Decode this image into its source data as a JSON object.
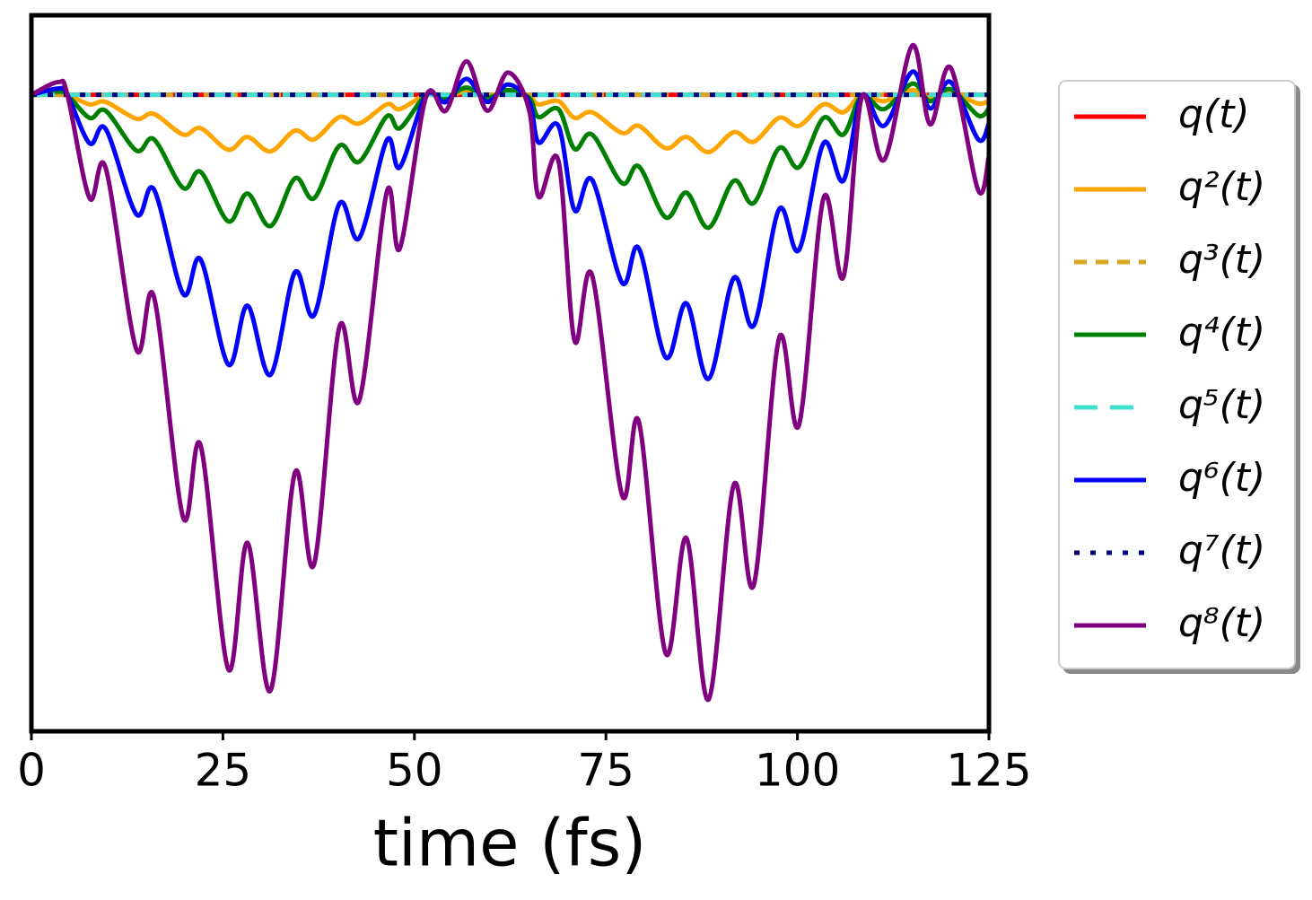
{
  "chart_data": {
    "type": "line",
    "xlabel": "time (fs)",
    "xlim": [
      0,
      125
    ],
    "xticks": [
      0,
      25,
      50,
      75,
      100,
      125
    ],
    "ylim": [
      -0.8,
      0.1
    ],
    "x": [
      0,
      3.5,
      4.7,
      7.6,
      9.7,
      13.7,
      16.0,
      19.8,
      22.1,
      25.7,
      28.2,
      31.2,
      34.4,
      36.9,
      40.2,
      42.8,
      46.4,
      48.1,
      51.5,
      54.1,
      56.8,
      59.5,
      62.2,
      65.0,
      66.2,
      68.8,
      70.9,
      73.2,
      77.1,
      79.3,
      82.8,
      85.5,
      88.4,
      91.7,
      94.3,
      97.6,
      100.2,
      103.4,
      106.0,
      108.4,
      111.3,
      115.0,
      117.3,
      120.0,
      123.6,
      125
    ],
    "legend": "right",
    "series": [
      {
        "name": "q(t)",
        "color": "#ff0000",
        "dash": "solid",
        "values": [
          0,
          0,
          0,
          0,
          0,
          0,
          0,
          0,
          0,
          0,
          0,
          0,
          0,
          0,
          0,
          0,
          0,
          0,
          0,
          0,
          0,
          0,
          0,
          0,
          0,
          0,
          0,
          0,
          0,
          0,
          0,
          0,
          0,
          0,
          0,
          0,
          0,
          0,
          0,
          0,
          0,
          0,
          0,
          0,
          0,
          0
        ]
      },
      {
        "name": "q²(t)",
        "color": "#ffa500",
        "dash": "solid",
        "values": [
          0,
          0.002,
          0,
          -0.012,
          -0.009,
          -0.03,
          -0.024,
          -0.05,
          -0.042,
          -0.069,
          -0.053,
          -0.071,
          -0.045,
          -0.056,
          -0.028,
          -0.036,
          -0.012,
          -0.018,
          0,
          -0.002,
          0.004,
          -0.002,
          0.003,
          -0.002,
          -0.012,
          -0.008,
          -0.029,
          -0.022,
          -0.048,
          -0.039,
          -0.067,
          -0.053,
          -0.072,
          -0.047,
          -0.059,
          -0.029,
          -0.039,
          -0.012,
          -0.022,
          0,
          -0.008,
          0.006,
          -0.004,
          0.003,
          -0.011,
          -0.007
        ]
      },
      {
        "name": "q³(t)",
        "color": "#daa520",
        "dash": "dashed",
        "values": [
          0,
          0,
          0,
          0,
          0,
          0,
          0,
          0,
          0,
          0,
          0,
          0,
          0,
          0,
          0,
          0,
          0,
          0,
          0,
          0,
          0,
          0,
          0,
          0,
          0,
          0,
          0,
          0,
          0,
          0,
          0,
          0,
          0,
          0,
          0,
          0,
          0,
          0,
          0,
          0,
          0,
          0,
          0,
          0,
          0,
          0
        ]
      },
      {
        "name": "q⁴(t)",
        "color": "#008000",
        "dash": "solid",
        "values": [
          0,
          0.004,
          0,
          -0.029,
          -0.02,
          -0.07,
          -0.056,
          -0.117,
          -0.097,
          -0.159,
          -0.124,
          -0.165,
          -0.105,
          -0.13,
          -0.064,
          -0.084,
          -0.027,
          -0.042,
          -0.001,
          -0.004,
          0.009,
          -0.004,
          0.006,
          -0.004,
          -0.028,
          -0.018,
          -0.068,
          -0.05,
          -0.111,
          -0.09,
          -0.154,
          -0.123,
          -0.167,
          -0.108,
          -0.136,
          -0.067,
          -0.091,
          -0.029,
          -0.05,
          -0.001,
          -0.018,
          0.014,
          -0.008,
          0.007,
          -0.026,
          -0.017
        ]
      },
      {
        "name": "q⁵(t)",
        "color": "#40e0d0",
        "dash": "longdash",
        "values": [
          0,
          0,
          0,
          0,
          0,
          0,
          0,
          0,
          0,
          0,
          0,
          0,
          0,
          0,
          0,
          0,
          0,
          0,
          0,
          0,
          0,
          0,
          0,
          0,
          0,
          0,
          0,
          0,
          0,
          0,
          0,
          0,
          0,
          0,
          0,
          0,
          0,
          0,
          0,
          0,
          0,
          0,
          0,
          0,
          0,
          0
        ]
      },
      {
        "name": "q⁶(t)",
        "color": "#0000ff",
        "dash": "solid",
        "values": [
          0,
          0.008,
          0,
          -0.061,
          -0.043,
          -0.15,
          -0.119,
          -0.25,
          -0.207,
          -0.339,
          -0.265,
          -0.352,
          -0.223,
          -0.277,
          -0.137,
          -0.18,
          -0.057,
          -0.091,
          -0.001,
          -0.009,
          0.02,
          -0.009,
          0.013,
          -0.009,
          -0.06,
          -0.039,
          -0.145,
          -0.107,
          -0.236,
          -0.193,
          -0.33,
          -0.262,
          -0.357,
          -0.23,
          -0.29,
          -0.144,
          -0.195,
          -0.061,
          -0.108,
          -0.001,
          -0.039,
          0.029,
          -0.017,
          0.016,
          -0.056,
          -0.036
        ]
      },
      {
        "name": "q⁷(t)",
        "color": "#000080",
        "dash": "dotted",
        "values": [
          0,
          0,
          0,
          0,
          0,
          0,
          0,
          0,
          0,
          0,
          0,
          0,
          0,
          0,
          0,
          0,
          0,
          0,
          0,
          0,
          0,
          0,
          0,
          0,
          0,
          0,
          0,
          0,
          0,
          0,
          0,
          0,
          0,
          0,
          0,
          0,
          0,
          0,
          0,
          0,
          0,
          0,
          0,
          0,
          0,
          0
        ]
      },
      {
        "name": "q⁸(t)",
        "color": "#800080",
        "dash": "solid",
        "values": [
          0,
          0.016,
          0,
          -0.13,
          -0.092,
          -0.32,
          -0.254,
          -0.531,
          -0.441,
          -0.722,
          -0.563,
          -0.749,
          -0.475,
          -0.59,
          -0.292,
          -0.384,
          -0.122,
          -0.193,
          -0.003,
          -0.02,
          0.042,
          -0.02,
          0.028,
          -0.02,
          -0.128,
          -0.083,
          -0.309,
          -0.227,
          -0.503,
          -0.411,
          -0.702,
          -0.557,
          -0.76,
          -0.49,
          -0.616,
          -0.306,
          -0.415,
          -0.13,
          -0.229,
          -0.003,
          -0.082,
          0.062,
          -0.037,
          0.034,
          -0.12,
          -0.077
        ]
      }
    ]
  }
}
